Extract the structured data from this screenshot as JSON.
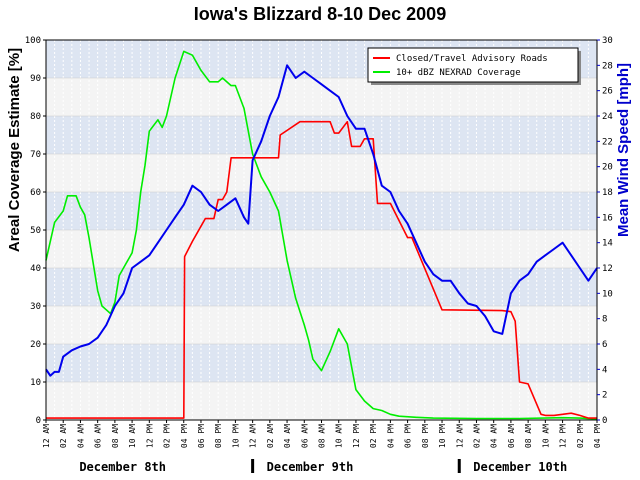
{
  "chart_data": {
    "type": "line",
    "title": "Iowa's Blizzard 8-10 Dec 2009",
    "ylabel": "Areal Coverage Estimate [%]",
    "y2label": "Mean Wind Speed [mph]",
    "ylim": [
      0,
      100
    ],
    "y2lim": [
      0,
      30
    ],
    "yticks": [
      0,
      10,
      20,
      30,
      40,
      50,
      60,
      70,
      80,
      90,
      100
    ],
    "y2ticks": [
      0,
      2,
      4,
      6,
      8,
      10,
      12,
      14,
      16,
      18,
      20,
      22,
      24,
      26,
      28,
      30
    ],
    "x_unit": "hours since 12 AM December 8th",
    "xlim": [
      0,
      64
    ],
    "xticks": [
      "12 AM",
      "02 AM",
      "04 AM",
      "06 AM",
      "08 AM",
      "10 AM",
      "12 PM",
      "02 PM",
      "04 PM",
      "06 PM",
      "08 PM",
      "10 PM",
      "12 AM",
      "02 AM",
      "04 AM",
      "06 AM",
      "08 AM",
      "10 AM",
      "12 PM",
      "02 PM",
      "04 PM",
      "06 PM",
      "08 PM",
      "10 PM",
      "12 AM",
      "02 AM",
      "04 AM",
      "06 AM",
      "08 AM",
      "10 AM",
      "12 PM",
      "02 PM",
      "04 PM"
    ],
    "date_labels": [
      "December 8th",
      "December 9th",
      "December 10th"
    ],
    "grid": true,
    "legend_position": "top-right",
    "series": [
      {
        "name": "Closed/Travel Advisory Roads",
        "axis": "left",
        "color": "#ff0000",
        "x": [
          0,
          16,
          16.1,
          17,
          18,
          18.5,
          19.5,
          20,
          20.5,
          21,
          21.5,
          23,
          25,
          27,
          27.2,
          29.5,
          31,
          33,
          33.5,
          34,
          35,
          35.5,
          36.5,
          37,
          38,
          38.5,
          40,
          42,
          42.5,
          46,
          53,
          54,
          54.5,
          55,
          56,
          57.5,
          58,
          59,
          61,
          62,
          63,
          64
        ],
        "values": [
          0.5,
          0.5,
          43,
          47,
          51,
          53,
          53,
          58,
          58,
          60,
          69,
          69,
          69,
          69,
          75,
          78.5,
          78.5,
          78.5,
          75.5,
          75.5,
          78.5,
          72,
          72,
          74,
          74,
          57,
          57,
          48,
          48,
          29,
          28.8,
          28.5,
          26,
          10,
          9.5,
          1.5,
          1.2,
          1.2,
          1.8,
          1.2,
          0.5,
          0.5
        ]
      },
      {
        "name": "10+ dBZ NEXRAD Coverage",
        "axis": "left",
        "color": "#00ee00",
        "x": [
          0,
          1,
          2,
          2.5,
          3.5,
          4,
          4.5,
          5,
          6,
          6.5,
          7,
          7.5,
          8,
          8.5,
          9,
          10,
          10.5,
          11,
          11.5,
          12,
          13,
          13.5,
          14,
          15,
          16,
          17,
          18,
          19,
          20,
          20.5,
          21.5,
          22,
          23,
          24,
          25,
          26,
          27,
          28,
          29,
          30,
          30.5,
          31,
          32,
          33,
          34,
          35,
          36,
          37,
          38,
          39,
          40,
          41,
          43,
          45,
          50,
          55,
          60,
          62,
          64
        ],
        "values": [
          42,
          52,
          55,
          59,
          59,
          56,
          54,
          48,
          34,
          30,
          29,
          28,
          31,
          38,
          40,
          44,
          50,
          60,
          67,
          76,
          79,
          77,
          80,
          90,
          97,
          96,
          92,
          89,
          89,
          90,
          88,
          88,
          82,
          70,
          64,
          60,
          55,
          42,
          32,
          25,
          21,
          16,
          13,
          18,
          24,
          20,
          8,
          5,
          3,
          2.5,
          1.5,
          1,
          0.7,
          0.5,
          0.4,
          0.4,
          0.6,
          0.5,
          0.3
        ]
      },
      {
        "name": "Mean Wind Speed",
        "axis": "right",
        "color": "#0000ee",
        "x": [
          0,
          0.5,
          1,
          1.5,
          2,
          3,
          4,
          5,
          6,
          7,
          8,
          9,
          10,
          11,
          12,
          13,
          14,
          15,
          16,
          17,
          18,
          19,
          20,
          21,
          22,
          23,
          23.5,
          24,
          25,
          26,
          27,
          28,
          29,
          30,
          31,
          32,
          33,
          34,
          35,
          36,
          37,
          38,
          39,
          40,
          41,
          42,
          43,
          44,
          45,
          46,
          47,
          48,
          49,
          50,
          51,
          52,
          53,
          54,
          55,
          56,
          57,
          58,
          59,
          60,
          61,
          62,
          63,
          64
        ],
        "values": [
          4,
          3.5,
          3.8,
          3.8,
          5,
          5.5,
          5.8,
          6,
          6.5,
          7.5,
          9,
          10,
          12,
          12.5,
          13,
          14,
          15,
          16,
          17,
          18.5,
          18,
          17,
          16.5,
          17,
          17.5,
          16,
          15.5,
          20.5,
          22,
          24,
          25.5,
          28,
          27,
          27.5,
          27,
          26.5,
          26,
          25.5,
          24,
          23,
          23,
          21,
          18.5,
          18,
          16.5,
          15.5,
          14,
          12.5,
          11.5,
          11,
          11,
          10,
          9.2,
          9,
          8.2,
          7,
          6.8,
          10,
          11,
          11.5,
          12.5,
          13,
          13.5,
          14,
          13,
          12,
          11,
          12
        ]
      }
    ]
  }
}
